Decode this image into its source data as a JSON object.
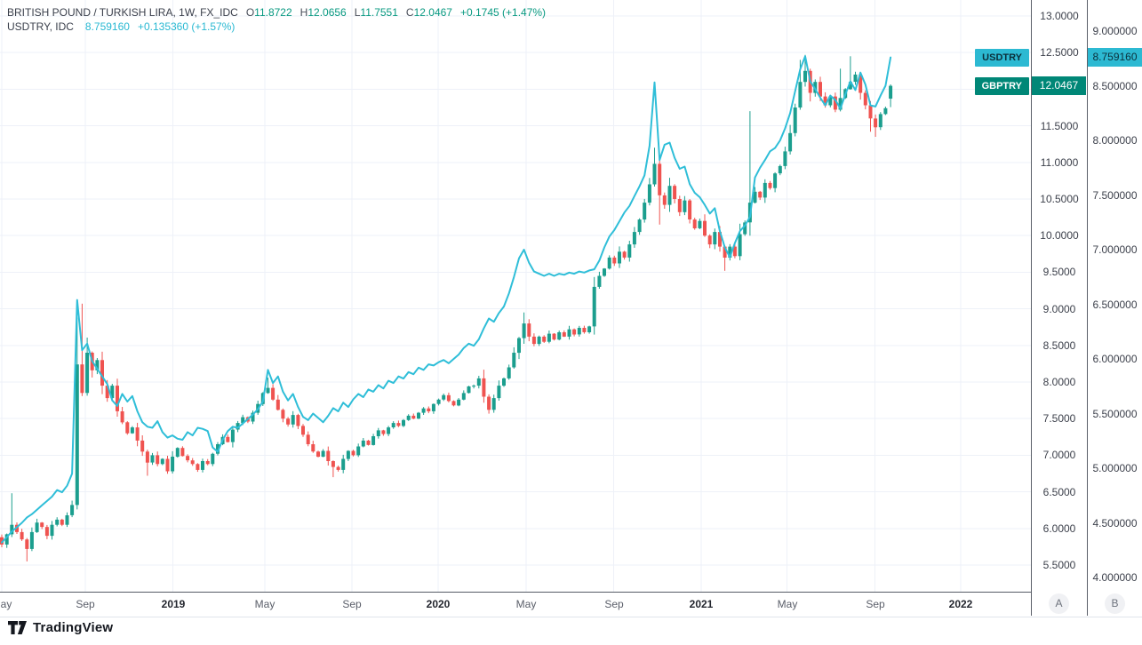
{
  "header": {
    "line1": {
      "symbol_title": "BRITISH POUND / TURKISH LIRA, 1W, FX_IDC",
      "o_label": "O",
      "o": "11.8722",
      "h_label": "H",
      "h": "12.0656",
      "l_label": "L",
      "l": "11.7551",
      "c_label": "C",
      "c": "12.0467",
      "change": "+0.1745 (+1.47%)"
    },
    "line2": {
      "symbol_title": "USDTRY, IDC",
      "value": "8.759160",
      "change": "+0.135360 (+1.57%)"
    }
  },
  "series_badges": {
    "usdtry_label": "USDTRY",
    "gbptry_label": "GBPTRY"
  },
  "price_tags": {
    "usdtry_value": "8.759160",
    "gbptry_value": "12.0467"
  },
  "axes": {
    "gbptry": {
      "min": 5.5,
      "max": 13.0,
      "step": 0.5,
      "decimals": 4,
      "pane_label": "A"
    },
    "usdtry": {
      "min": 4.0,
      "max": 9.0,
      "step": 0.5,
      "decimals": 6,
      "pane_label": "B"
    }
  },
  "time_axis": {
    "labels": [
      {
        "text": "May",
        "week": 0,
        "year": false
      },
      {
        "text": "Sep",
        "week": 16.6,
        "year": false
      },
      {
        "text": "2019",
        "week": 34.1,
        "year": true
      },
      {
        "text": "May",
        "week": 52.4,
        "year": false
      },
      {
        "text": "Sep",
        "week": 69.7,
        "year": false
      },
      {
        "text": "2020",
        "week": 86.9,
        "year": true
      },
      {
        "text": "May",
        "week": 104.4,
        "year": false
      },
      {
        "text": "Sep",
        "week": 121.9,
        "year": false
      },
      {
        "text": "2021",
        "week": 139.3,
        "year": true
      },
      {
        "text": "May",
        "week": 156.4,
        "year": false
      },
      {
        "text": "Sep",
        "week": 173.9,
        "year": false
      },
      {
        "text": "2022",
        "week": 191.0,
        "year": true
      }
    ]
  },
  "footer": {
    "logo_text": "TradingView"
  },
  "colors": {
    "up": "#1b9e8e",
    "down": "#ef5350",
    "line": "#2fbed8",
    "grid": "#eef1f8",
    "usd_badge_bg": "#2cb9d2",
    "usd_badge_text": "#0b2f3a",
    "gbp_badge_bg": "#008777",
    "gbp_badge_text": "#ffffff"
  },
  "chart_data": {
    "type": "candlestick+line",
    "title": "BRITISH POUND / TURKISH LIRA, 1W, FX_IDC with USDTRY, IDC overlay",
    "timeframe": "1W",
    "x_range": "May 2018 - Oct 2021 (weekly), axis labeled May 2018 - Jan 2022",
    "left_axis": {
      "symbol": "GBPTRY",
      "min": 5.5,
      "max": 13.0,
      "tick_step": 0.5
    },
    "right_axis": {
      "symbol": "USDTRY",
      "min": 4.0,
      "max": 9.0,
      "tick_step": 0.5
    },
    "legend_position": "top-left",
    "grid": true,
    "series": [
      {
        "name": "GBPTRY",
        "type": "candlestick",
        "axis": "left",
        "last": {
          "o": 11.8722,
          "h": 12.0656,
          "l": 11.7551,
          "c": 12.0467
        },
        "closes": [
          5.78,
          5.92,
          6.05,
          5.95,
          5.85,
          5.72,
          5.95,
          6.08,
          6.02,
          5.9,
          6.05,
          6.12,
          6.05,
          6.18,
          6.32,
          8.24,
          7.85,
          8.4,
          8.16,
          8.3,
          7.95,
          7.78,
          7.95,
          7.6,
          7.45,
          7.3,
          7.38,
          7.2,
          7.05,
          6.9,
          7.0,
          6.88,
          6.95,
          6.78,
          6.98,
          7.1,
          6.99,
          6.93,
          6.88,
          6.8,
          6.92,
          6.88,
          7.02,
          7.15,
          7.25,
          7.18,
          7.35,
          7.44,
          7.52,
          7.46,
          7.58,
          7.7,
          7.85,
          7.92,
          7.76,
          7.62,
          7.5,
          7.42,
          7.55,
          7.4,
          7.28,
          7.15,
          7.05,
          6.98,
          7.06,
          6.92,
          6.84,
          6.8,
          6.95,
          7.06,
          7.0,
          7.12,
          7.2,
          7.14,
          7.26,
          7.34,
          7.29,
          7.38,
          7.44,
          7.4,
          7.48,
          7.54,
          7.5,
          7.58,
          7.64,
          7.6,
          7.7,
          7.76,
          7.82,
          7.74,
          7.68,
          7.76,
          7.85,
          7.94,
          7.95,
          8.05,
          7.8,
          7.62,
          7.78,
          7.95,
          8.05,
          8.2,
          8.4,
          8.6,
          8.8,
          8.62,
          8.52,
          8.62,
          8.55,
          8.66,
          8.58,
          8.68,
          8.62,
          8.72,
          8.65,
          8.74,
          8.68,
          8.76,
          9.3,
          9.45,
          9.55,
          9.7,
          9.62,
          9.78,
          9.7,
          9.88,
          10.05,
          10.22,
          10.45,
          10.7,
          10.98,
          10.55,
          10.42,
          10.68,
          10.5,
          10.32,
          10.48,
          10.22,
          10.1,
          10.2,
          10.0,
          9.88,
          10.05,
          9.85,
          9.7,
          9.85,
          9.72,
          10.02,
          10.18,
          10.45,
          10.6,
          10.52,
          10.72,
          10.65,
          10.85,
          10.95,
          11.15,
          11.4,
          11.75,
          12.1,
          12.25,
          11.95,
          12.1,
          11.9,
          11.78,
          11.9,
          11.72,
          11.88,
          12.0,
          12.1,
          12.2,
          11.95,
          11.78,
          11.6,
          11.48,
          11.66,
          11.74,
          12.0467
        ],
        "overrides": {
          "0": {
            "o": 5.88
          },
          "2": {
            "h": 6.48
          },
          "5": {
            "l": 5.55
          },
          "15": {
            "h": 8.88,
            "l": 6.26
          },
          "16": {
            "h": 9.07
          },
          "29": {
            "l": 6.72
          },
          "53": {
            "h": 8.06
          },
          "66": {
            "l": 6.7
          },
          "104": {
            "h": 8.95
          },
          "130": {
            "h": 11.2
          },
          "131": {
            "l": 10.15
          },
          "144": {
            "l": 9.52
          },
          "149": {
            "h": 11.7,
            "l": 10.0
          },
          "159": {
            "h": 12.4
          },
          "160": {
            "h": 12.47
          },
          "167": {
            "h": 12.28
          },
          "169": {
            "h": 12.45
          },
          "173": {
            "l": 11.42
          },
          "174": {
            "l": 11.35
          },
          "177": {
            "o": 11.8722,
            "h": 12.0656,
            "l": 11.7551,
            "c": 12.0467
          }
        }
      },
      {
        "name": "USDTRY",
        "type": "line",
        "axis": "right",
        "last_value": 8.75916,
        "values": [
          4.32,
          4.37,
          4.42,
          4.46,
          4.5,
          4.55,
          4.58,
          4.62,
          4.66,
          4.7,
          4.74,
          4.8,
          4.78,
          4.84,
          4.95,
          6.54,
          6.08,
          6.14,
          5.98,
          5.91,
          5.84,
          5.77,
          5.62,
          5.57,
          5.68,
          5.61,
          5.66,
          5.52,
          5.42,
          5.38,
          5.37,
          5.43,
          5.33,
          5.28,
          5.3,
          5.27,
          5.26,
          5.33,
          5.3,
          5.37,
          5.36,
          5.34,
          5.19,
          5.15,
          5.26,
          5.34,
          5.38,
          5.37,
          5.41,
          5.45,
          5.49,
          5.54,
          5.61,
          5.9,
          5.78,
          5.84,
          5.7,
          5.62,
          5.68,
          5.56,
          5.47,
          5.44,
          5.5,
          5.46,
          5.42,
          5.48,
          5.55,
          5.52,
          5.6,
          5.56,
          5.63,
          5.68,
          5.65,
          5.72,
          5.7,
          5.76,
          5.73,
          5.8,
          5.78,
          5.84,
          5.82,
          5.88,
          5.86,
          5.92,
          5.9,
          5.95,
          5.94,
          5.97,
          5.99,
          5.96,
          6.0,
          6.04,
          6.1,
          6.14,
          6.12,
          6.18,
          6.28,
          6.37,
          6.34,
          6.42,
          6.48,
          6.6,
          6.75,
          6.92,
          7.0,
          6.88,
          6.8,
          6.78,
          6.76,
          6.78,
          6.76,
          6.78,
          6.77,
          6.79,
          6.78,
          6.8,
          6.79,
          6.81,
          6.82,
          6.9,
          7.02,
          7.12,
          7.18,
          7.26,
          7.34,
          7.4,
          7.49,
          7.58,
          7.68,
          7.95,
          8.53,
          7.82,
          7.96,
          7.98,
          7.84,
          7.74,
          7.76,
          7.6,
          7.52,
          7.48,
          7.41,
          7.33,
          7.38,
          7.17,
          7.02,
          6.93,
          7.06,
          7.17,
          7.22,
          7.3,
          7.66,
          7.75,
          7.82,
          7.9,
          7.93,
          8.0,
          8.11,
          8.25,
          8.45,
          8.65,
          8.77,
          8.54,
          8.47,
          8.39,
          8.32,
          8.41,
          8.37,
          8.29,
          8.42,
          8.54,
          8.46,
          8.62,
          8.51,
          8.32,
          8.31,
          8.41,
          8.5,
          8.75916
        ]
      }
    ]
  }
}
